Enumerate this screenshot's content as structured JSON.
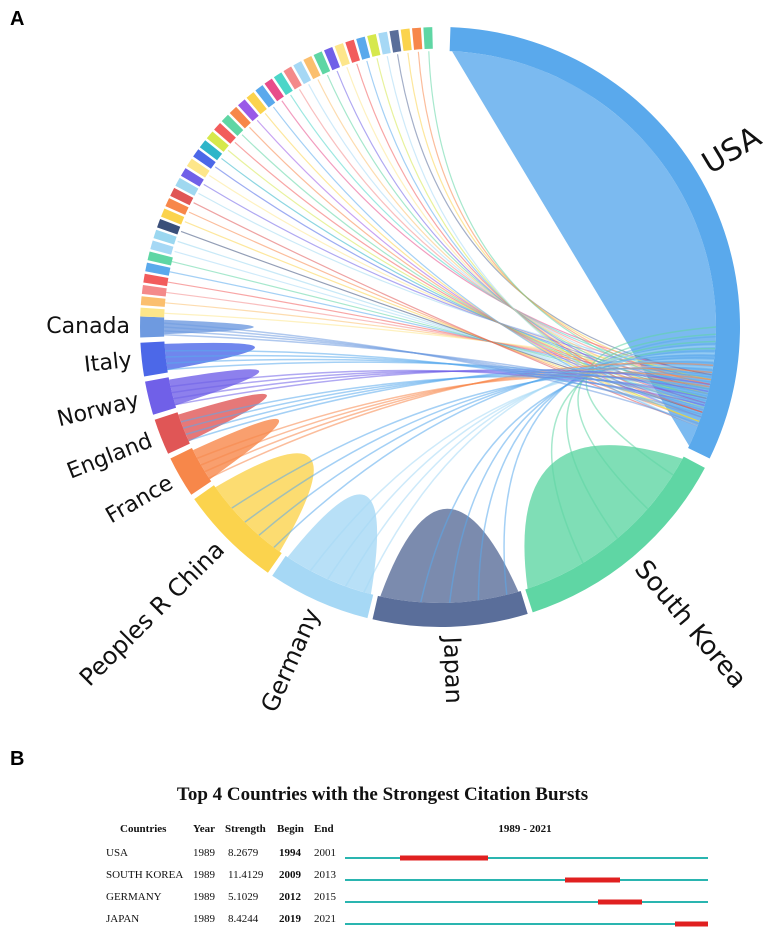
{
  "panel_a_label": "A",
  "panel_b_label": "B",
  "chart_data": [
    {
      "type": "chord",
      "countries": [
        {
          "name": "USA",
          "color": "#5aa9ec",
          "share": 0.22
        },
        {
          "name": "South Korea",
          "color": "#5fd6a4",
          "share": 0.1
        },
        {
          "name": "Japan",
          "color": "#5a6e9a",
          "share": 0.07
        },
        {
          "name": "Germany",
          "color": "#a6d8f5",
          "share": 0.05
        },
        {
          "name": "Peoples R China",
          "color": "#fbd34d",
          "share": 0.045
        },
        {
          "name": "France",
          "color": "#f7874a",
          "share": 0.022
        },
        {
          "name": "England",
          "color": "#e05656",
          "share": 0.018
        },
        {
          "name": "Norway",
          "color": "#7060e8",
          "share": 0.016
        },
        {
          "name": "Italy",
          "color": "#4c68e8",
          "share": 0.016
        },
        {
          "name": "Canada",
          "color": "#6e9ae0",
          "share": 0.011
        }
      ],
      "minor_colors": [
        "#fde68a",
        "#fbbf6e",
        "#f48a8a",
        "#f25c5c",
        "#5aa9ec",
        "#5fd6a4",
        "#a6d8f5",
        "#9bd7f0",
        "#3a4f7a",
        "#fbd34d",
        "#f7874a",
        "#e05656",
        "#a0d8f0",
        "#7060e8",
        "#fde68a",
        "#4c68e8",
        "#2fb5c9",
        "#d6e84c",
        "#f25c5c",
        "#5fd6a4",
        "#f7874a",
        "#9a5ae8",
        "#fbd34d",
        "#5aa9ec",
        "#e84c8a",
        "#4cd6c8",
        "#f48a8a",
        "#a6d8f5",
        "#fbbf6e",
        "#5fd6a4",
        "#7060e8",
        "#fde68a",
        "#f25c5c",
        "#5aa9ec",
        "#d6e84c",
        "#a6d8f5",
        "#5a6e9a",
        "#fbd34d",
        "#f7874a",
        "#5fd6a4"
      ]
    },
    {
      "type": "table",
      "title": "Top 4 Countries with the Strongest Citation Bursts",
      "columns": [
        "Countries",
        "Year",
        "Strength",
        "Begin",
        "End",
        "1989 - 2021"
      ],
      "range": [
        1989,
        2021
      ],
      "rows": [
        {
          "country": "USA",
          "year": "1989",
          "strength": "8.2679",
          "begin": "1994",
          "end": "2001"
        },
        {
          "country": "SOUTH KOREA",
          "year": "1989",
          "strength": "11.4129",
          "begin": "2009",
          "end": "2013"
        },
        {
          "country": "GERMANY",
          "year": "1989",
          "strength": "5.1029",
          "begin": "2012",
          "end": "2015"
        },
        {
          "country": "JAPAN",
          "year": "1989",
          "strength": "8.4244",
          "begin": "2019",
          "end": "2021"
        }
      ],
      "line_color": "#2ab5b0",
      "burst_color": "#e02020"
    }
  ]
}
